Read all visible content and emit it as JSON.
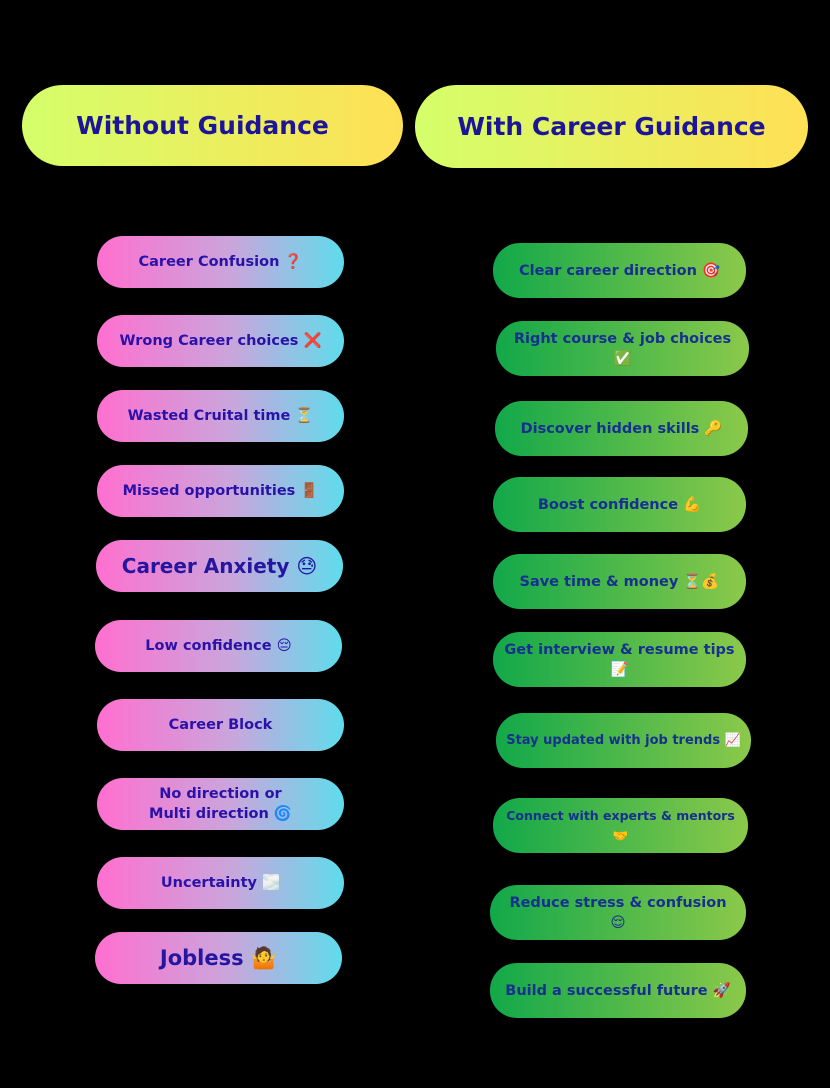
{
  "headers": {
    "left": "Without Guidance",
    "right": "With Career Guidance"
  },
  "colors": {
    "background": "#000000",
    "header_gradient": [
      "#d4ff6a",
      "#ffe055"
    ],
    "left_gradient": [
      "#ff6fcf",
      "#5fdcec"
    ],
    "right_gradient": [
      "#12a84a",
      "#8bc94a"
    ],
    "text": "#2a12a8"
  },
  "without": [
    "Career Confusion ❓",
    "Wrong Career choices ❌",
    "Wasted Cruital time ⏳",
    "Missed opportunities 🚪",
    "Career Anxiety 😓",
    "Low confidence 😔",
    "Career Block",
    "No direction or Multi direction 🌀",
    "Uncertainty 🌫️",
    "Jobless 🤷"
  ],
  "with": [
    "Clear career direction 🎯",
    "Right course & job choices ✅",
    "Discover hidden skills 🔑",
    "Boost confidence 💪",
    "Save time & money ⏳💰",
    "Get interview & resume tips 📝",
    "Stay updated with job trends 📈",
    "Connect with experts & mentors 🤝",
    "Reduce stress & confusion 😌",
    "Build a successful future 🚀"
  ]
}
